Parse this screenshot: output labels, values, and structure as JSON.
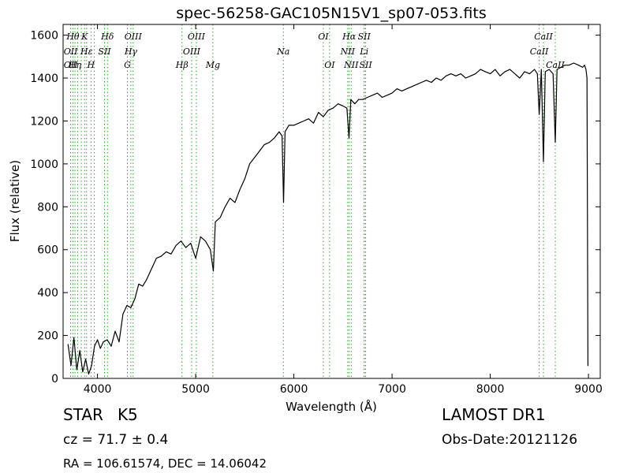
{
  "title": "spec-56258-GAC105N15V1_sp07-053.fits",
  "footer": {
    "class_label": "STAR",
    "subclass": "K5",
    "cz_text": "cz = 71.7 ± 0.4",
    "radec_text": "RA = 106.61574, DEC = 14.06042",
    "survey": "LAMOST DR1",
    "obs_date": "Obs-Date:20121126"
  },
  "chart_data": {
    "type": "line",
    "title": "spec-56258-GAC105N15V1_sp07-053.fits",
    "xlabel": "Wavelength (Å)",
    "ylabel": "Flux (relative)",
    "xlim": [
      3650,
      9120
    ],
    "ylim": [
      0,
      1650
    ],
    "xticks": [
      4000,
      5000,
      6000,
      7000,
      8000,
      9000
    ],
    "yticks": [
      0,
      200,
      400,
      600,
      800,
      1000,
      1200,
      1400,
      1600
    ],
    "grid": false,
    "line_color": "#000000",
    "marker_color": "#2ca02c",
    "series": [
      {
        "x": [
          3700,
          3730,
          3760,
          3790,
          3820,
          3850,
          3880,
          3910,
          3940,
          3970,
          4000,
          4030,
          4060,
          4100,
          4140,
          4180,
          4220,
          4260,
          4300,
          4340,
          4380,
          4420,
          4460,
          4500,
          4550,
          4600,
          4650,
          4700,
          4750,
          4800,
          4850,
          4900,
          4950,
          5000,
          5050,
          5100,
          5150,
          5180,
          5200,
          5250,
          5300,
          5350,
          5400,
          5450,
          5500,
          5550,
          5600,
          5650,
          5700,
          5750,
          5800,
          5850,
          5880,
          5895,
          5910,
          5950,
          6000,
          6050,
          6100,
          6150,
          6200,
          6250,
          6300,
          6350,
          6400,
          6450,
          6500,
          6540,
          6562,
          6580,
          6620,
          6660,
          6700,
          6750,
          6800,
          6850,
          6900,
          6950,
          7000,
          7050,
          7100,
          7150,
          7200,
          7250,
          7300,
          7350,
          7400,
          7450,
          7500,
          7550,
          7600,
          7650,
          7700,
          7750,
          7800,
          7850,
          7900,
          7950,
          8000,
          8050,
          8100,
          8150,
          8200,
          8250,
          8300,
          8350,
          8400,
          8450,
          8480,
          8498,
          8520,
          8542,
          8560,
          8600,
          8640,
          8662,
          8680,
          8720,
          8760,
          8800,
          8850,
          8900,
          8940,
          8960,
          8975,
          8985,
          8995,
          9000
        ],
        "y": [
          160,
          60,
          190,
          40,
          130,
          30,
          90,
          20,
          60,
          150,
          180,
          140,
          170,
          180,
          150,
          220,
          170,
          300,
          340,
          330,
          370,
          440,
          430,
          460,
          510,
          560,
          570,
          590,
          580,
          620,
          640,
          610,
          630,
          560,
          660,
          640,
          600,
          500,
          730,
          750,
          800,
          840,
          820,
          880,
          930,
          1000,
          1030,
          1060,
          1090,
          1100,
          1120,
          1150,
          1130,
          820,
          1150,
          1180,
          1180,
          1190,
          1200,
          1210,
          1190,
          1240,
          1220,
          1250,
          1260,
          1280,
          1270,
          1260,
          1120,
          1300,
          1280,
          1300,
          1300,
          1310,
          1320,
          1330,
          1310,
          1320,
          1330,
          1350,
          1340,
          1350,
          1360,
          1370,
          1380,
          1390,
          1380,
          1400,
          1390,
          1410,
          1420,
          1410,
          1420,
          1400,
          1410,
          1420,
          1440,
          1430,
          1420,
          1440,
          1410,
          1430,
          1440,
          1420,
          1400,
          1430,
          1420,
          1440,
          1420,
          1230,
          1440,
          1010,
          1430,
          1440,
          1420,
          1100,
          1440,
          1450,
          1460,
          1460,
          1470,
          1460,
          1450,
          1460,
          1440,
          1400,
          60,
          60
        ]
      }
    ],
    "line_markers": [
      {
        "x": 3727,
        "label": "OII",
        "row": 1
      },
      {
        "x": 3727,
        "label": "OII",
        "row": 2
      },
      {
        "x": 3750,
        "label": "Hθ",
        "row": 0
      },
      {
        "x": 3771,
        "label": "Hη",
        "row": 2
      },
      {
        "x": 3798,
        "label": "",
        "row": 0
      },
      {
        "x": 3835,
        "label": "",
        "row": 0
      },
      {
        "x": 3869,
        "label": "K",
        "row": 0
      },
      {
        "x": 3889,
        "label": "Hε",
        "row": 1
      },
      {
        "x": 3934,
        "label": "H",
        "row": 2
      },
      {
        "x": 3968,
        "label": "",
        "row": 0
      },
      {
        "x": 4072,
        "label": "SII",
        "row": 1
      },
      {
        "x": 4102,
        "label": "Hδ",
        "row": 0
      },
      {
        "x": 4305,
        "label": "G",
        "row": 2
      },
      {
        "x": 4340,
        "label": "Hγ",
        "row": 1
      },
      {
        "x": 4363,
        "label": "OIII",
        "row": 0
      },
      {
        "x": 4861,
        "label": "Hβ",
        "row": 2
      },
      {
        "x": 4959,
        "label": "OIII",
        "row": 1
      },
      {
        "x": 5007,
        "label": "OIII",
        "row": 0
      },
      {
        "x": 5175,
        "label": "Mg",
        "row": 2
      },
      {
        "x": 5893,
        "label": "Na",
        "row": 1
      },
      {
        "x": 6300,
        "label": "OI",
        "row": 0
      },
      {
        "x": 6364,
        "label": "OI",
        "row": 2
      },
      {
        "x": 6548,
        "label": "NII",
        "row": 1
      },
      {
        "x": 6563,
        "label": "Hα",
        "row": 0
      },
      {
        "x": 6584,
        "label": "NII",
        "row": 2
      },
      {
        "x": 6716,
        "label": "SII",
        "row": 0
      },
      {
        "x": 6716,
        "label": "Li",
        "row": 1
      },
      {
        "x": 6731,
        "label": "SII",
        "row": 2
      },
      {
        "x": 8498,
        "label": "CaII",
        "row": 1
      },
      {
        "x": 8542,
        "label": "CaII",
        "row": 0
      },
      {
        "x": 8662,
        "label": "CaII",
        "row": 2
      }
    ]
  }
}
